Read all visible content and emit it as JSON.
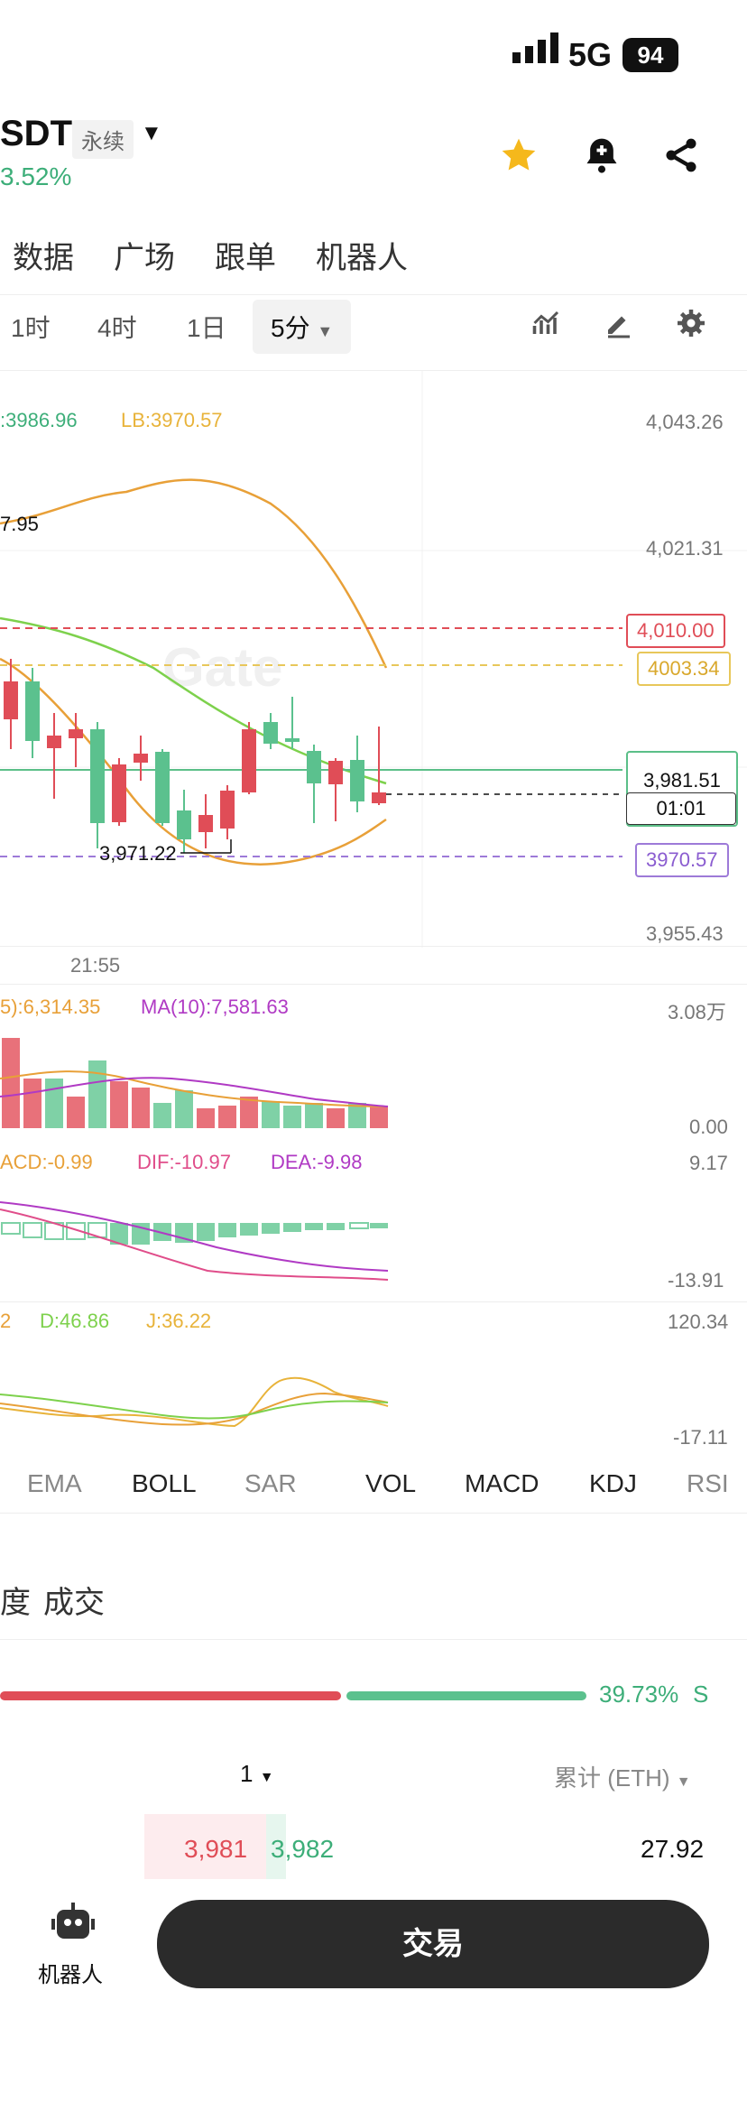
{
  "status": {
    "network": "5G",
    "battery": "94"
  },
  "header": {
    "symbol": "SDT",
    "tag": "永续",
    "change": "3.52%"
  },
  "main_tabs": [
    "数据",
    "广场",
    "跟单",
    "机器人"
  ],
  "timeframes": {
    "items": [
      "1时",
      "4时",
      "1日"
    ],
    "selected": "5分"
  },
  "chart_overlay": {
    "boll_mid_label": ":3986.96",
    "boll_lb_label": "LB:3970.57",
    "left_value": "7.95",
    "low_label": "3,971.22",
    "time_label": "21:55",
    "watermark": "Gate"
  },
  "price_axis": {
    "ticks": [
      "4,043.26",
      "4,021.31",
      "3,955.43"
    ],
    "tag_red": "4,010.00",
    "tag_yellow": "4003.34",
    "current_price": "3,981.51",
    "countdown": "01:01",
    "tag_purple": "3970.57"
  },
  "volume": {
    "ma5": "5):6,314.35",
    "ma10": "MA(10):7,581.63",
    "top": "3.08万",
    "bottom": "0.00"
  },
  "macd": {
    "macd": "ACD:-0.99",
    "dif": "DIF:-10.97",
    "dea": "DEA:-9.98",
    "top": "9.17",
    "bottom": "-13.91"
  },
  "kdj": {
    "k": "2",
    "d": "D:46.86",
    "j": "J:36.22",
    "top": "120.34",
    "bottom": "-17.11"
  },
  "indicator_tabs": [
    "EMA",
    "BOLL",
    "SAR",
    "VOL",
    "MACD",
    "KDJ",
    "RSI"
  ],
  "orderbook_tabs": [
    "度",
    "成交"
  ],
  "ratio": {
    "sell_pct": "39.73%",
    "sell_label": "S"
  },
  "depth": {
    "precision": "1",
    "cumulative": "累计 (ETH)"
  },
  "book_row": {
    "bid": "3,981",
    "ask": "3,982",
    "amount": "27.92"
  },
  "bottom_nav": {
    "robot": "机器人",
    "trade": "交易"
  }
}
